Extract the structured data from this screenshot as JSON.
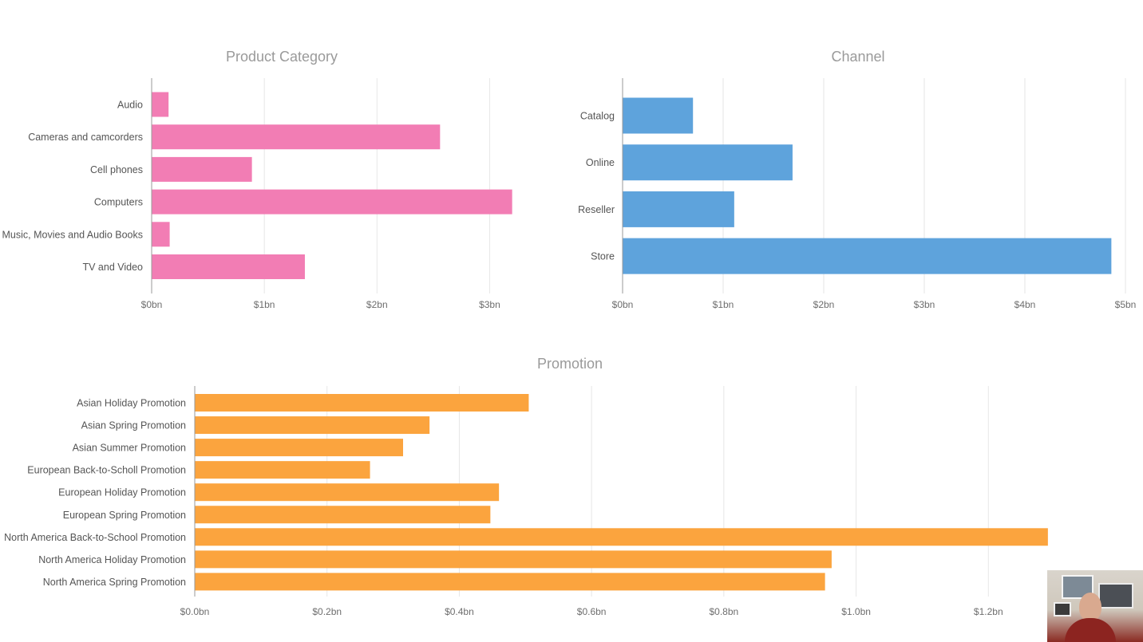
{
  "chart_data": [
    {
      "type": "bar",
      "orientation": "horizontal",
      "title": "Product Category",
      "categories": [
        "Audio",
        "Cameras and camcorders",
        "Cell phones",
        "Computers",
        "Music, Movies and Audio Books",
        "TV and Video"
      ],
      "values": [
        0.15,
        2.56,
        0.89,
        3.2,
        0.16,
        1.36
      ],
      "unit": "bn USD",
      "xlim": [
        0,
        3.5
      ],
      "xticks": [
        0,
        1,
        2,
        3
      ],
      "xtick_labels": [
        "$0bn",
        "$1bn",
        "$2bn",
        "$3bn"
      ],
      "color": "#f27db4",
      "grid": true
    },
    {
      "type": "bar",
      "orientation": "horizontal",
      "title": "Channel",
      "categories": [
        "Catalog",
        "Online",
        "Reseller",
        "Store"
      ],
      "values": [
        0.7,
        1.69,
        1.11,
        4.86
      ],
      "unit": "bn USD",
      "xlim": [
        0,
        5
      ],
      "xticks": [
        0,
        1,
        2,
        3,
        4,
        5
      ],
      "xtick_labels": [
        "$0bn",
        "$1bn",
        "$2bn",
        "$3bn",
        "$4bn",
        "$5bn"
      ],
      "color": "#5ea3dc",
      "grid": true
    },
    {
      "type": "bar",
      "orientation": "horizontal",
      "title": "Promotion",
      "categories": [
        "Asian Holiday Promotion",
        "Asian Spring Promotion",
        "Asian Summer Promotion",
        "European Back-to-Scholl Promotion",
        "European Holiday Promotion",
        "European Spring Promotion",
        "North America Back-to-School Promotion",
        "North America Holiday Promotion",
        "North America Spring Promotion"
      ],
      "values": [
        0.505,
        0.355,
        0.315,
        0.265,
        0.46,
        0.447,
        1.29,
        0.963,
        0.953
      ],
      "unit": "bn USD",
      "xlim": [
        0,
        1.4
      ],
      "xticks": [
        0,
        0.2,
        0.4,
        0.6,
        0.8,
        1.0,
        1.2
      ],
      "xtick_labels": [
        "$0.0bn",
        "$0.2bn",
        "$0.4bn",
        "$0.6bn",
        "$0.8bn",
        "$1.0bn",
        "$1.2bn"
      ],
      "color": "#fba43e",
      "grid": true
    }
  ],
  "webcam": {
    "icon": "presenter-webcam"
  }
}
